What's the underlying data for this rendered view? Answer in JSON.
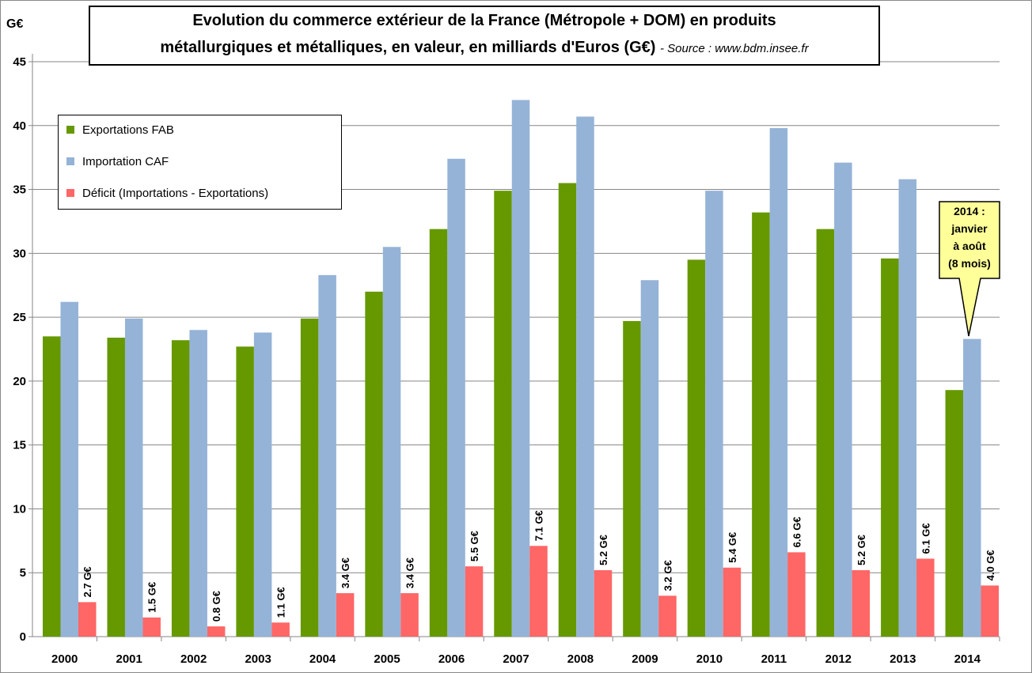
{
  "chart_data": {
    "type": "bar",
    "title": "Evolution du commerce extérieur de la France (Métropole + DOM) en produits métallurgiques et métalliques, en valeur, en milliards d'Euros (G€)",
    "title_line1": "Evolution du commerce extérieur de la France (Métropole + DOM) en produits",
    "title_line2": "métallurgiques et métalliques, en valeur, en milliards d'Euros (G€)",
    "source": "- Source : www.bdm.insee.fr",
    "ylabel": "G€",
    "xlabel": "",
    "ylim": [
      0,
      45
    ],
    "yticks": [
      0,
      5,
      10,
      15,
      20,
      25,
      30,
      35,
      40,
      45
    ],
    "grid": true,
    "legend_position": "top-left",
    "categories": [
      "2000",
      "2001",
      "2002",
      "2003",
      "2004",
      "2005",
      "2006",
      "2007",
      "2008",
      "2009",
      "2010",
      "2011",
      "2012",
      "2013",
      "2014"
    ],
    "series": [
      {
        "name": "Exportations FAB",
        "color": "#669900",
        "values": [
          23.5,
          23.4,
          23.2,
          22.7,
          24.9,
          27.0,
          31.9,
          34.9,
          35.5,
          24.7,
          29.5,
          33.2,
          31.9,
          29.6,
          19.3
        ]
      },
      {
        "name": "Importation CAF",
        "color": "#95B3D7",
        "values": [
          26.2,
          24.9,
          24.0,
          23.8,
          28.3,
          30.5,
          37.4,
          42.0,
          40.7,
          27.9,
          34.9,
          39.8,
          37.1,
          35.8,
          23.3
        ]
      },
      {
        "name": "Déficit (Importations - Exportations)",
        "color": "#FF6666",
        "values": [
          2.7,
          1.5,
          0.8,
          1.1,
          3.4,
          3.4,
          5.5,
          7.1,
          5.2,
          3.2,
          5.4,
          6.6,
          5.2,
          6.1,
          4.0
        ]
      }
    ],
    "data_labels": [
      "2.7 G€",
      "1.5 G€",
      "0.8 G€",
      "1.1 G€",
      "3.4 G€",
      "3.4 G€",
      "5.5 G€",
      "7.1 G€",
      "5.2 G€",
      "3.2 G€",
      "5.4 G€",
      "6.6 G€",
      "5.2 G€",
      "6.1 G€",
      "4.0 G€"
    ],
    "annotation": {
      "lines": [
        "2014 :",
        "janvier",
        "à août",
        "(8 mois)"
      ],
      "color": "#FFFF99"
    }
  }
}
